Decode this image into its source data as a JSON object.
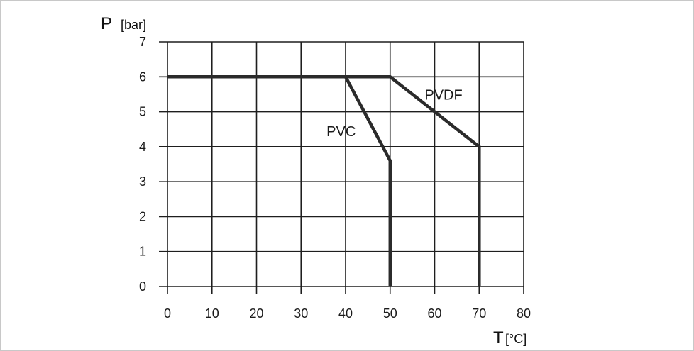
{
  "chart_data": {
    "type": "line",
    "xlabel_symbol": "T",
    "xlabel_unit": "[°C]",
    "ylabel_symbol": "P",
    "ylabel_unit": "[bar]",
    "xlim": [
      0,
      80
    ],
    "ylim": [
      0,
      7
    ],
    "x_ticks": [
      "0",
      "10",
      "20",
      "30",
      "40",
      "50",
      "60",
      "70",
      "80"
    ],
    "y_ticks": [
      "0",
      "1",
      "2",
      "3",
      "4",
      "5",
      "6",
      "7"
    ],
    "grid": true,
    "line_color": "#2b2b2b",
    "series": [
      {
        "name": "PVC",
        "points": [
          [
            0,
            6
          ],
          [
            40,
            6
          ],
          [
            50,
            3.6
          ],
          [
            50,
            0
          ]
        ],
        "label_at": [
          39,
          4.3
        ]
      },
      {
        "name": "PVDF",
        "points": [
          [
            0,
            6
          ],
          [
            50,
            6
          ],
          [
            70,
            4
          ],
          [
            70,
            0
          ]
        ],
        "label_at": [
          62,
          5.35
        ]
      }
    ]
  }
}
